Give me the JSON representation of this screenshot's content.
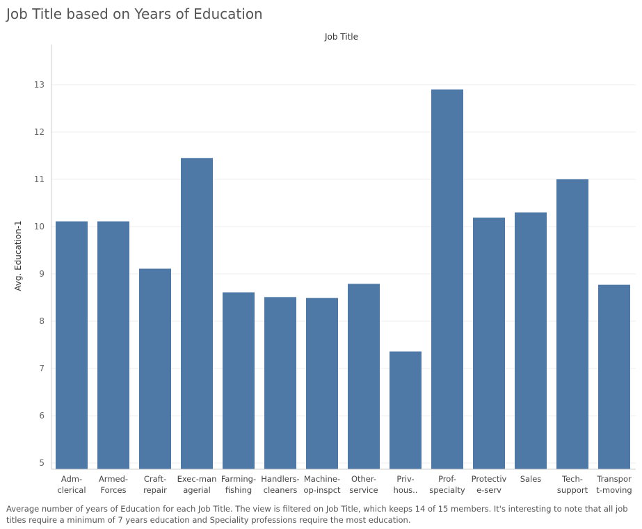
{
  "title": "Job Title based on Years of Education",
  "caption": "Average number of years of Education for each Job Title. The view is filtered on Job Title, which keeps 14 of 15 members. It's interesting to note that all job titles require a minimum of 7 years education and Speciality professions require the most education.",
  "colors": {
    "bar": "#4e79a7",
    "grid": "#eeeeee"
  },
  "chart_data": {
    "type": "bar",
    "title": "Job Title based on Years of Education",
    "xlabel": "Job Title",
    "ylabel": "Avg. Education-1",
    "ylim": [
      4.87,
      13.85
    ],
    "yticks": [
      5,
      6,
      7,
      8,
      9,
      10,
      11,
      12,
      13
    ],
    "grid": true,
    "categories": [
      [
        "Adm-",
        "clerical"
      ],
      [
        "Armed-",
        "Forces"
      ],
      [
        "Craft-",
        "repair"
      ],
      [
        "Exec-man",
        "agerial"
      ],
      [
        "Farming-",
        "fishing"
      ],
      [
        "Handlers-",
        "cleaners"
      ],
      [
        "Machine-",
        "op-inspct"
      ],
      [
        "Other-",
        "service"
      ],
      [
        "Priv-",
        "hous.."
      ],
      [
        "Prof-",
        "specialty"
      ],
      [
        "Protectiv",
        "e-serv"
      ],
      [
        "Sales"
      ],
      [
        "Tech-",
        "support"
      ],
      [
        "Transpor",
        "t-moving"
      ]
    ],
    "values": [
      10.11,
      10.11,
      9.11,
      11.45,
      8.61,
      8.51,
      8.49,
      8.79,
      7.36,
      12.9,
      10.19,
      10.3,
      11.0,
      8.77
    ]
  }
}
